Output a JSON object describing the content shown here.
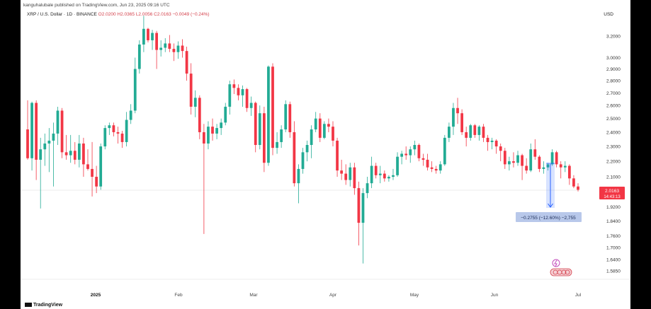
{
  "header": {
    "meta": "kanguhalubale published on TradingView.com, Jun 23, 2025 09:16 UTC",
    "symbol": "XRP / U.S. Dollar · 1D · BINANCE",
    "o": "O2.0200",
    "h": "H2.0365",
    "l": "L2.0056",
    "c": "C2.0163",
    "chg": "−0.0049 (−0.24%)",
    "currency": "USD"
  },
  "price_label": {
    "value": "2.0163",
    "countdown": "14:43:13"
  },
  "measure_label": "−0.2755 (−12.60%) −2,755",
  "footer": {
    "brand": "TradingView"
  },
  "colors": {
    "up": "#22ab94",
    "down": "#f23645",
    "measure": "#2962ff",
    "last": "#f23645"
  },
  "chart_data": {
    "type": "candlestick",
    "scale": "log",
    "yticks": [
      "3.2000",
      "3.0000",
      "2.9000",
      "2.8000",
      "2.7000",
      "2.6000",
      "2.5000",
      "2.4000",
      "2.3000",
      "2.2000",
      "2.1000",
      "1.9200",
      "1.8400",
      "1.7600",
      "1.7000",
      "1.6400",
      "1.5850"
    ],
    "xticks": [
      "2025",
      "Feb",
      "Mar",
      "Apr",
      "May",
      "Jun",
      "Jul"
    ],
    "candles": [
      [
        2.42,
        2.64,
        2.21,
        2.22
      ],
      [
        2.22,
        2.63,
        2.14,
        2.62
      ],
      [
        2.62,
        2.64,
        2.08,
        2.21
      ],
      [
        2.21,
        2.36,
        1.91,
        2.28
      ],
      [
        2.28,
        2.39,
        2.17,
        2.32
      ],
      [
        2.32,
        2.43,
        2.13,
        2.34
      ],
      [
        2.34,
        2.47,
        2.04,
        2.39
      ],
      [
        2.39,
        2.59,
        2.31,
        2.56
      ],
      [
        2.56,
        2.58,
        2.22,
        2.26
      ],
      [
        2.26,
        2.38,
        2.21,
        2.24
      ],
      [
        2.24,
        2.38,
        2.19,
        2.27
      ],
      [
        2.27,
        2.33,
        2.18,
        2.21
      ],
      [
        2.21,
        2.38,
        2.16,
        2.32
      ],
      [
        2.32,
        2.36,
        2.1,
        2.18
      ],
      [
        2.18,
        2.28,
        2.14,
        2.15
      ],
      [
        2.15,
        2.33,
        1.98,
        2.1
      ],
      [
        2.1,
        2.17,
        2.0,
        2.04
      ],
      [
        2.04,
        2.32,
        2.02,
        2.3
      ],
      [
        2.3,
        2.45,
        2.28,
        2.43
      ],
      [
        2.43,
        2.47,
        2.38,
        2.45
      ],
      [
        2.45,
        2.47,
        2.37,
        2.4
      ],
      [
        2.4,
        2.44,
        2.32,
        2.39
      ],
      [
        2.39,
        2.41,
        2.29,
        2.33
      ],
      [
        2.33,
        2.55,
        2.3,
        2.49
      ],
      [
        2.49,
        2.61,
        2.46,
        2.56
      ],
      [
        2.56,
        3.0,
        2.54,
        2.9
      ],
      [
        2.9,
        3.16,
        2.86,
        3.12
      ],
      [
        3.12,
        3.4,
        3.05,
        3.27
      ],
      [
        3.27,
        3.28,
        3.14,
        3.16
      ],
      [
        3.16,
        3.26,
        3.07,
        3.23
      ],
      [
        3.23,
        3.25,
        2.9,
        3.07
      ],
      [
        3.07,
        3.16,
        3.01,
        3.09
      ],
      [
        3.09,
        3.18,
        3.05,
        3.13
      ],
      [
        3.13,
        3.21,
        3.05,
        3.08
      ],
      [
        3.08,
        3.13,
        2.97,
        3.05
      ],
      [
        3.05,
        3.15,
        2.99,
        3.11
      ],
      [
        3.11,
        3.17,
        3.0,
        3.06
      ],
      [
        3.06,
        3.1,
        2.8,
        2.86
      ],
      [
        2.86,
        2.95,
        2.53,
        2.59
      ],
      [
        2.59,
        2.72,
        2.51,
        2.66
      ],
      [
        2.66,
        2.68,
        2.35,
        2.4
      ],
      [
        2.4,
        2.46,
        1.77,
        2.32
      ],
      [
        2.32,
        2.48,
        2.28,
        2.44
      ],
      [
        2.44,
        2.5,
        2.34,
        2.39
      ],
      [
        2.39,
        2.46,
        2.35,
        2.43
      ],
      [
        2.43,
        2.5,
        2.38,
        2.47
      ],
      [
        2.47,
        2.62,
        2.45,
        2.59
      ],
      [
        2.59,
        2.8,
        2.53,
        2.77
      ],
      [
        2.77,
        2.81,
        2.69,
        2.74
      ],
      [
        2.74,
        2.77,
        2.64,
        2.68
      ],
      [
        2.68,
        2.76,
        2.59,
        2.73
      ],
      [
        2.73,
        2.74,
        2.55,
        2.58
      ],
      [
        2.58,
        2.67,
        2.52,
        2.62
      ],
      [
        2.62,
        2.63,
        2.26,
        2.31
      ],
      [
        2.31,
        2.6,
        2.28,
        2.54
      ],
      [
        2.54,
        2.59,
        2.13,
        2.19
      ],
      [
        2.19,
        2.93,
        2.17,
        2.92
      ],
      [
        2.92,
        2.95,
        2.24,
        2.29
      ],
      [
        2.29,
        2.4,
        2.25,
        2.33
      ],
      [
        2.33,
        2.45,
        2.29,
        2.42
      ],
      [
        2.42,
        2.64,
        2.4,
        2.61
      ],
      [
        2.61,
        2.63,
        2.36,
        2.4
      ],
      [
        2.4,
        2.48,
        2.04,
        2.06
      ],
      [
        2.06,
        2.18,
        1.94,
        2.15
      ],
      [
        2.15,
        2.29,
        2.12,
        2.26
      ],
      [
        2.26,
        2.34,
        2.2,
        2.31
      ],
      [
        2.31,
        2.45,
        2.22,
        2.42
      ],
      [
        2.42,
        2.55,
        2.4,
        2.5
      ],
      [
        2.5,
        2.54,
        2.33,
        2.36
      ],
      [
        2.36,
        2.48,
        2.35,
        2.46
      ],
      [
        2.46,
        2.5,
        2.4,
        2.44
      ],
      [
        2.44,
        2.48,
        2.3,
        2.34
      ],
      [
        2.34,
        2.36,
        2.1,
        2.14
      ],
      [
        2.14,
        2.21,
        2.08,
        2.12
      ],
      [
        2.12,
        2.18,
        2.05,
        2.08
      ],
      [
        2.08,
        2.19,
        2.04,
        2.16
      ],
      [
        2.16,
        2.19,
        1.99,
        2.03
      ],
      [
        2.03,
        2.07,
        1.71,
        1.83
      ],
      [
        1.83,
        2.03,
        1.62,
        2.0
      ],
      [
        2.0,
        2.1,
        1.97,
        2.06
      ],
      [
        2.06,
        2.23,
        2.03,
        2.17
      ],
      [
        2.17,
        2.19,
        2.09,
        2.11
      ],
      [
        2.11,
        2.17,
        2.06,
        2.12
      ],
      [
        2.12,
        2.14,
        2.07,
        2.09
      ],
      [
        2.09,
        2.11,
        2.07,
        2.1
      ],
      [
        2.1,
        2.15,
        2.08,
        2.11
      ],
      [
        2.11,
        2.26,
        2.1,
        2.23
      ],
      [
        2.23,
        2.27,
        2.18,
        2.25
      ],
      [
        2.25,
        2.3,
        2.21,
        2.24
      ],
      [
        2.24,
        2.3,
        2.19,
        2.28
      ],
      [
        2.28,
        2.34,
        2.24,
        2.31
      ],
      [
        2.31,
        2.32,
        2.2,
        2.22
      ],
      [
        2.22,
        2.25,
        2.17,
        2.21
      ],
      [
        2.21,
        2.25,
        2.14,
        2.16
      ],
      [
        2.16,
        2.2,
        2.13,
        2.15
      ],
      [
        2.15,
        2.17,
        2.12,
        2.14
      ],
      [
        2.14,
        2.2,
        2.12,
        2.18
      ],
      [
        2.18,
        2.38,
        2.17,
        2.36
      ],
      [
        2.36,
        2.47,
        2.33,
        2.44
      ],
      [
        2.44,
        2.62,
        2.38,
        2.58
      ],
      [
        2.58,
        2.66,
        2.46,
        2.54
      ],
      [
        2.54,
        2.57,
        2.38,
        2.4
      ],
      [
        2.4,
        2.44,
        2.3,
        2.36
      ],
      [
        2.36,
        2.46,
        2.34,
        2.45
      ],
      [
        2.45,
        2.46,
        2.36,
        2.38
      ],
      [
        2.38,
        2.45,
        2.34,
        2.44
      ],
      [
        2.44,
        2.46,
        2.33,
        2.36
      ],
      [
        2.36,
        2.38,
        2.27,
        2.33
      ],
      [
        2.33,
        2.36,
        2.28,
        2.34
      ],
      [
        2.34,
        2.35,
        2.25,
        2.3
      ],
      [
        2.3,
        2.32,
        2.2,
        2.27
      ],
      [
        2.27,
        2.29,
        2.15,
        2.18
      ],
      [
        2.18,
        2.23,
        2.14,
        2.2
      ],
      [
        2.2,
        2.26,
        2.16,
        2.19
      ],
      [
        2.19,
        2.27,
        2.17,
        2.24
      ],
      [
        2.24,
        2.25,
        2.08,
        2.17
      ],
      [
        2.17,
        2.22,
        2.12,
        2.14
      ],
      [
        2.14,
        2.32,
        2.13,
        2.28
      ],
      [
        2.28,
        2.35,
        2.21,
        2.23
      ],
      [
        2.23,
        2.24,
        2.13,
        2.15
      ],
      [
        2.15,
        2.2,
        2.12,
        2.16
      ],
      [
        2.16,
        2.19,
        2.14,
        2.18
      ],
      [
        2.18,
        2.28,
        2.17,
        2.26
      ],
      [
        2.26,
        2.27,
        2.16,
        2.18
      ],
      [
        2.18,
        2.2,
        2.09,
        2.16
      ],
      [
        2.16,
        2.2,
        2.13,
        2.17
      ],
      [
        2.17,
        2.18,
        2.05,
        2.09
      ],
      [
        2.09,
        2.11,
        2.03,
        2.04
      ],
      [
        2.04,
        2.06,
        2.01,
        2.02
      ]
    ]
  }
}
